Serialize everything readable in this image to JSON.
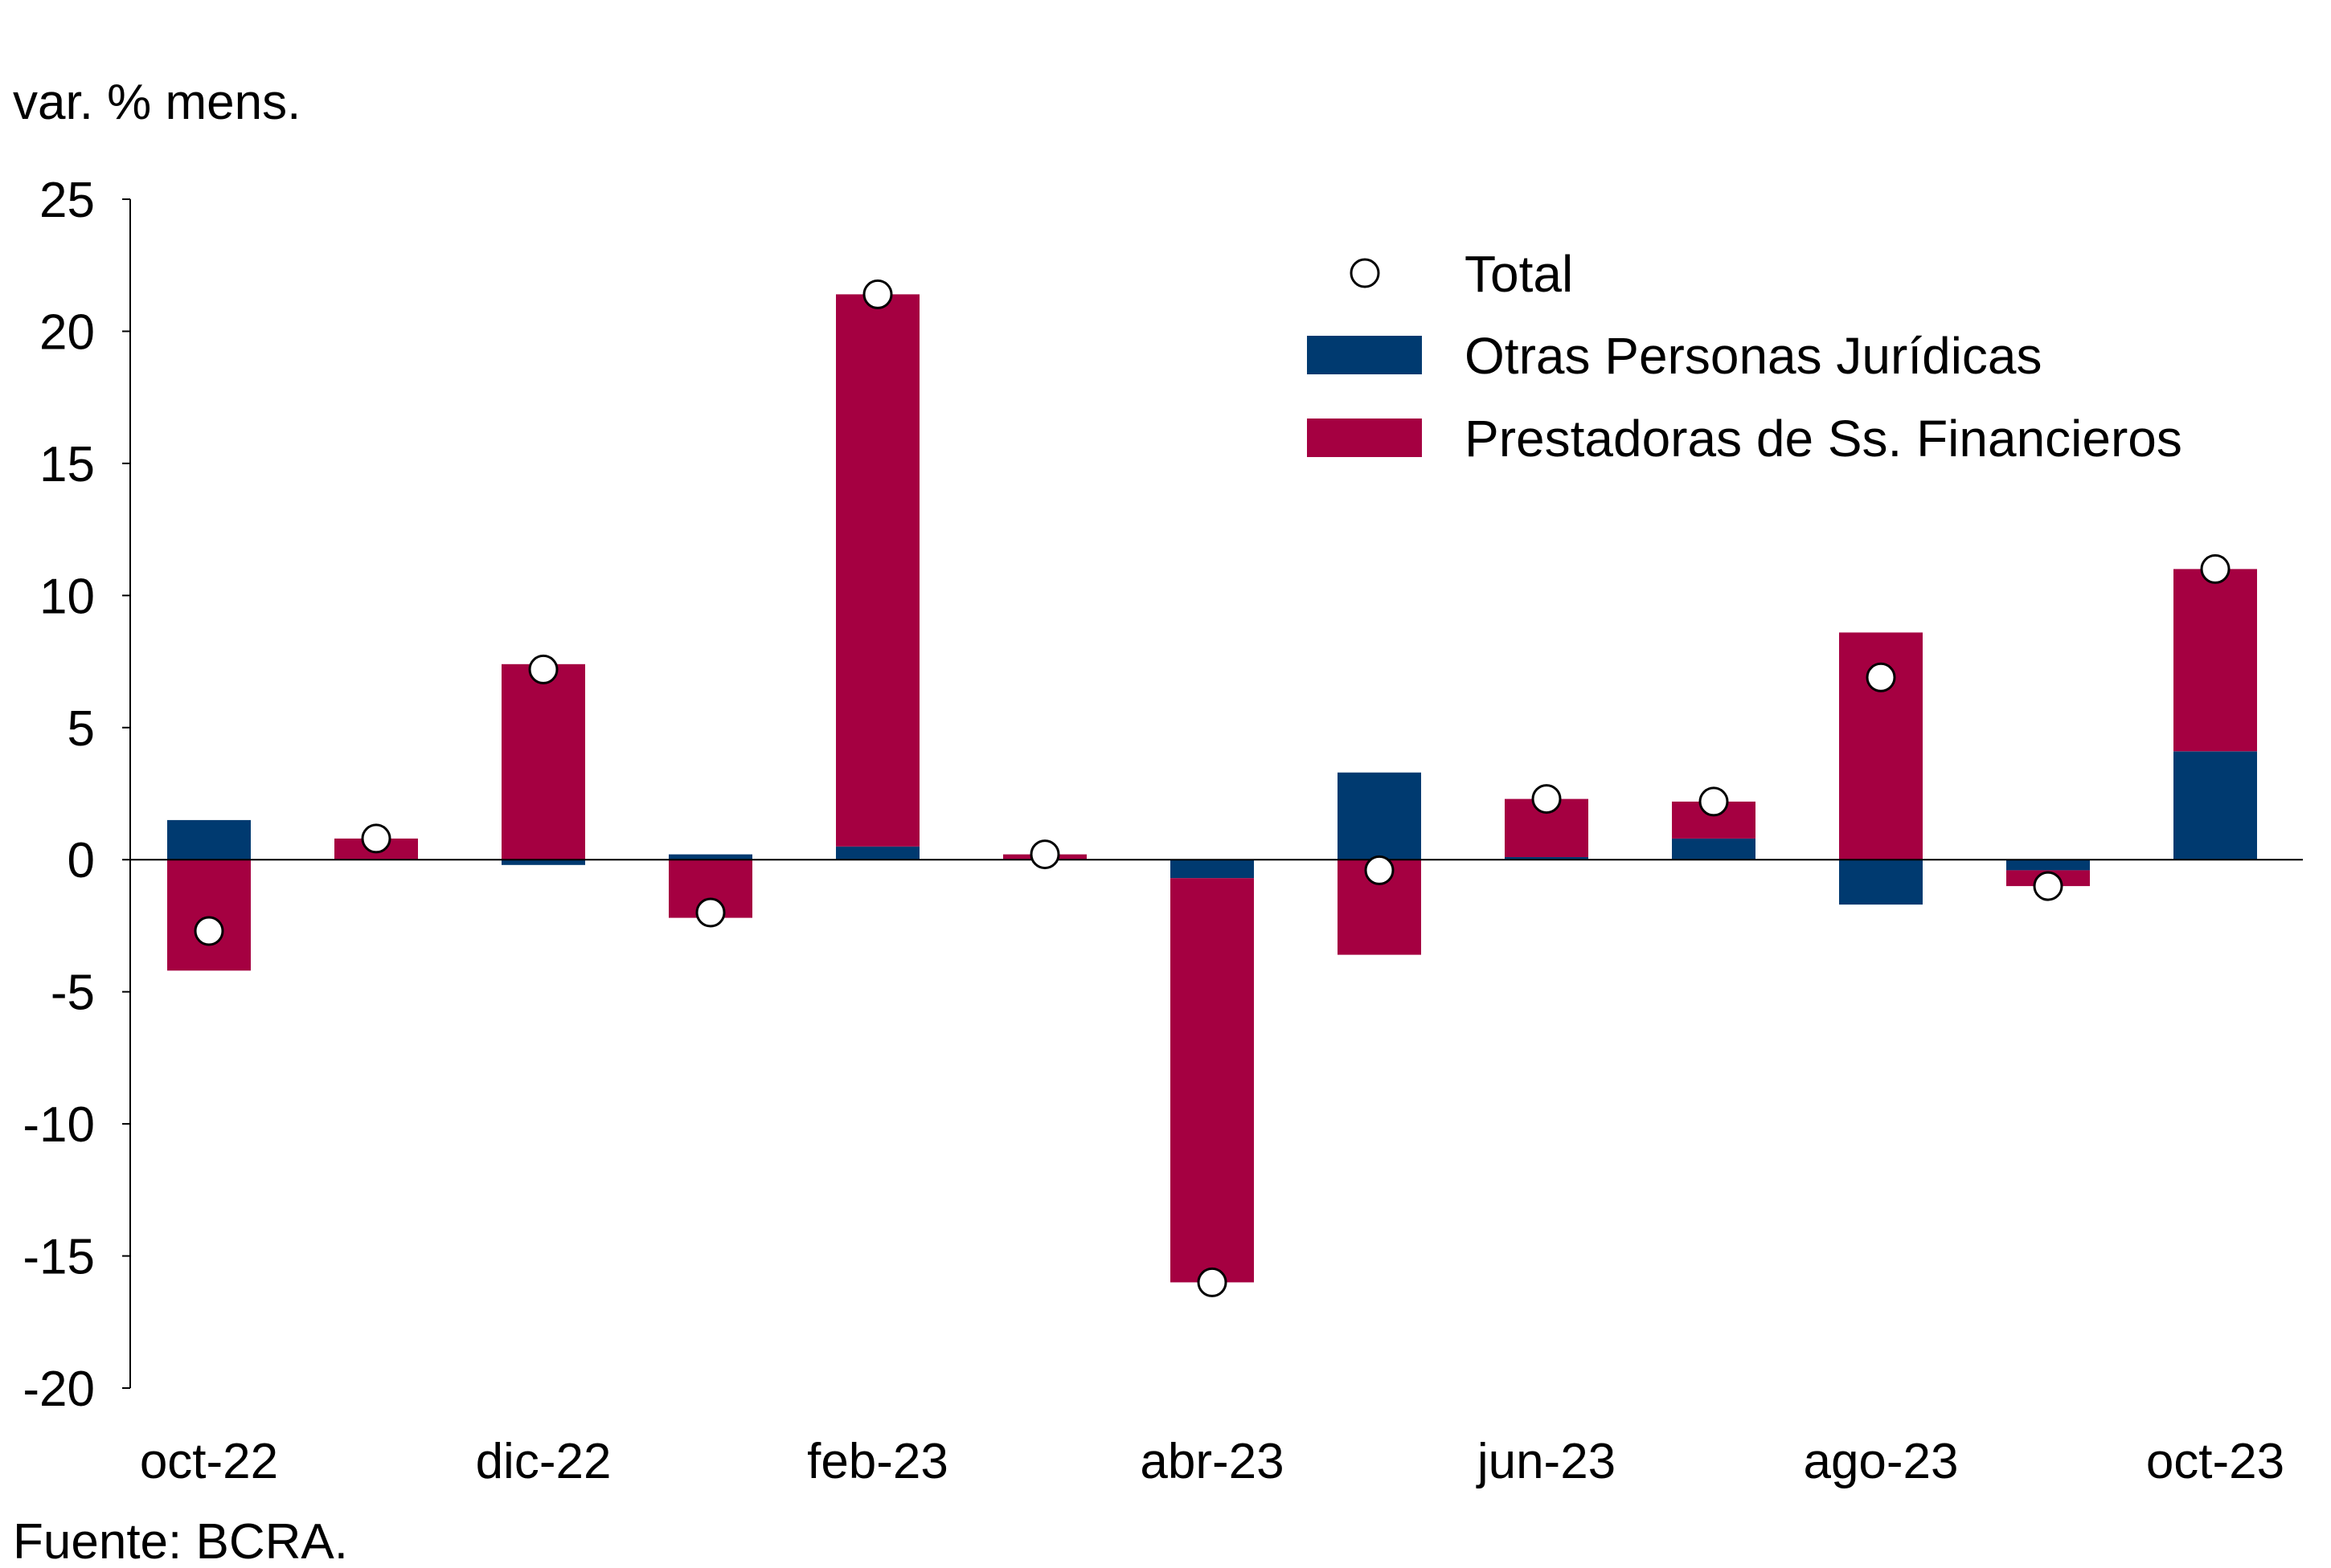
{
  "chart_data": {
    "type": "bar",
    "stacked": true,
    "unit_label": "var. % mens.",
    "source": "Fuente: BCRA.",
    "categories": [
      "oct-22",
      "nov-22",
      "dic-22",
      "ene-23",
      "feb-23",
      "mar-23",
      "abr-23",
      "may-23",
      "jun-23",
      "jul-23",
      "ago-23",
      "sep-23",
      "oct-23"
    ],
    "x_tick_labels": [
      "oct-22",
      "",
      "dic-22",
      "",
      "feb-23",
      "",
      "abr-23",
      "",
      "jun-23",
      "",
      "ago-23",
      "",
      "oct-23"
    ],
    "ylim": [
      -20,
      25
    ],
    "y_ticks": [
      25,
      20,
      15,
      10,
      5,
      0,
      -5,
      -10,
      -15,
      -20
    ],
    "grid": false,
    "legend_position": "top-right",
    "series": [
      {
        "name": "Otras Personas Jurídicas",
        "kind": "bar",
        "color": "#003a70",
        "values": [
          1.5,
          0.0,
          -0.2,
          0.2,
          0.5,
          0.0,
          -0.7,
          3.3,
          0.1,
          0.8,
          -1.7,
          -0.4,
          4.1
        ]
      },
      {
        "name": "Prestadoras de Ss. Financieros",
        "kind": "bar",
        "color": "#a50041",
        "values": [
          -4.2,
          0.8,
          7.4,
          -2.2,
          20.9,
          0.2,
          -15.3,
          -3.6,
          2.2,
          1.4,
          8.6,
          -0.6,
          6.9
        ]
      },
      {
        "name": "Total",
        "kind": "marker",
        "color": "#ffffff",
        "values": [
          -2.7,
          0.8,
          7.2,
          -2.0,
          21.4,
          0.2,
          -16.0,
          -0.4,
          2.3,
          2.2,
          6.9,
          -1.0,
          11.0
        ]
      }
    ],
    "legend": [
      "Total",
      "Otras Personas Jurídicas",
      "Prestadoras de Ss. Financieros"
    ]
  }
}
